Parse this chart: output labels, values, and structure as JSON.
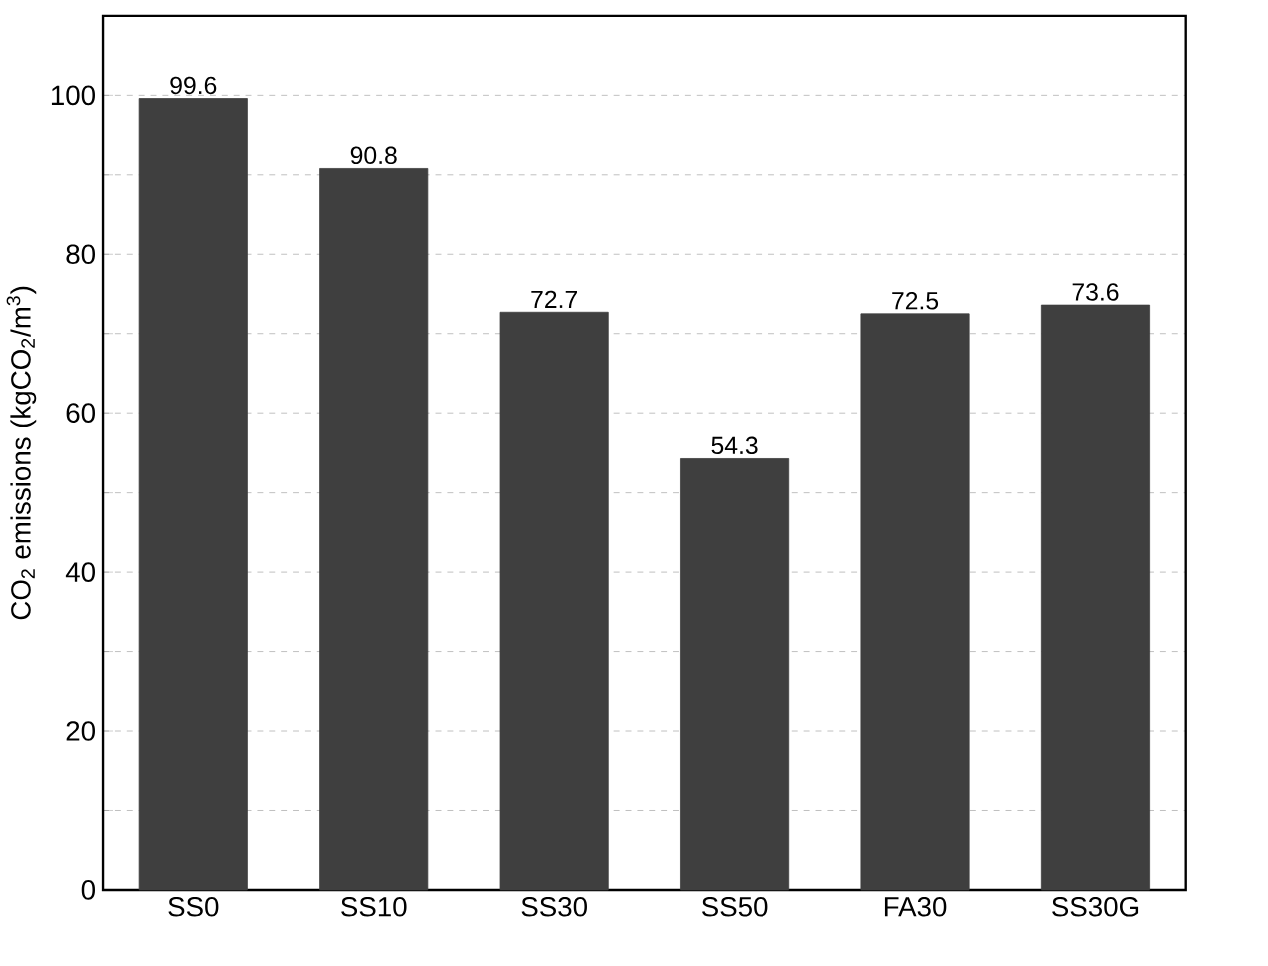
{
  "chart_data": {
    "type": "bar",
    "ylabel": "CO$_{2}$ emissions (kgCO$_{2}$/m$^{3}$)",
    "categories": [
      "SS0",
      "SS10",
      "SS30",
      "SS50",
      "FA30",
      "SS30G"
    ],
    "values": [
      99.6,
      90.8,
      72.7,
      54.3,
      72.5,
      73.6
    ],
    "color": "#3f3f3f",
    "ylim": [
      0,
      110
    ],
    "yticks": [
      0,
      {
        "value": 10,
        "label": null
      },
      20,
      {
        "value": 30,
        "label": null
      },
      40,
      {
        "value": 50,
        "label": null
      },
      60,
      {
        "value": 70,
        "label": null
      },
      80,
      {
        "value": 90,
        "label": null
      },
      100
    ],
    "grid": "y",
    "data_labels": true
  }
}
